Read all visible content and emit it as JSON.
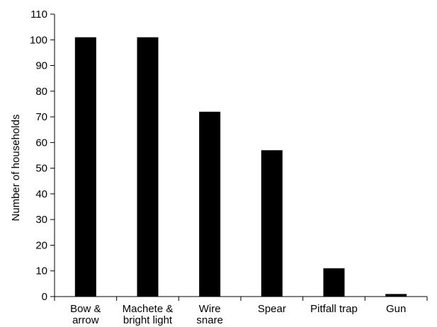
{
  "chart_data": {
    "type": "bar",
    "title": "",
    "xlabel": "",
    "ylabel": "Number of households",
    "ylim": [
      0,
      110
    ],
    "yticks": [
      0,
      10,
      20,
      30,
      40,
      50,
      60,
      70,
      80,
      90,
      100,
      110
    ],
    "grid": false,
    "categories": [
      [
        "Bow &",
        "arrow"
      ],
      [
        "Machete &",
        "bright light"
      ],
      [
        "Wire",
        "snare"
      ],
      [
        "Spear"
      ],
      [
        "Pitfall trap"
      ],
      [
        "Gun"
      ]
    ],
    "values": [
      101,
      101,
      72,
      57,
      11,
      1
    ],
    "bar_color": "#000000"
  }
}
